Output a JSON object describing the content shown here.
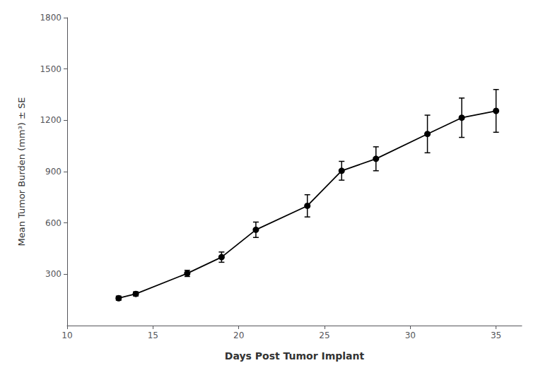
{
  "chart_data": {
    "type": "line",
    "x": [
      13,
      14,
      17,
      19,
      21,
      24,
      26,
      28,
      31,
      33,
      35
    ],
    "values": [
      160,
      185,
      305,
      400,
      560,
      700,
      905,
      975,
      1120,
      1215,
      1255
    ],
    "yerr": [
      12,
      12,
      18,
      30,
      45,
      65,
      55,
      70,
      110,
      115,
      125
    ],
    "xlabel": "Days Post Tumor Implant",
    "ylabel": "Mean Tumor Burden (mm³) ± SE",
    "xlim": [
      10,
      36.5
    ],
    "ylim": [
      0,
      1800
    ],
    "xticks": [
      10,
      15,
      20,
      25,
      30,
      35
    ],
    "yticks": [
      300,
      600,
      900,
      1200,
      1500,
      1800
    ],
    "color": "#000000",
    "marker": "circle",
    "line_style": "solid",
    "grid": false
  }
}
